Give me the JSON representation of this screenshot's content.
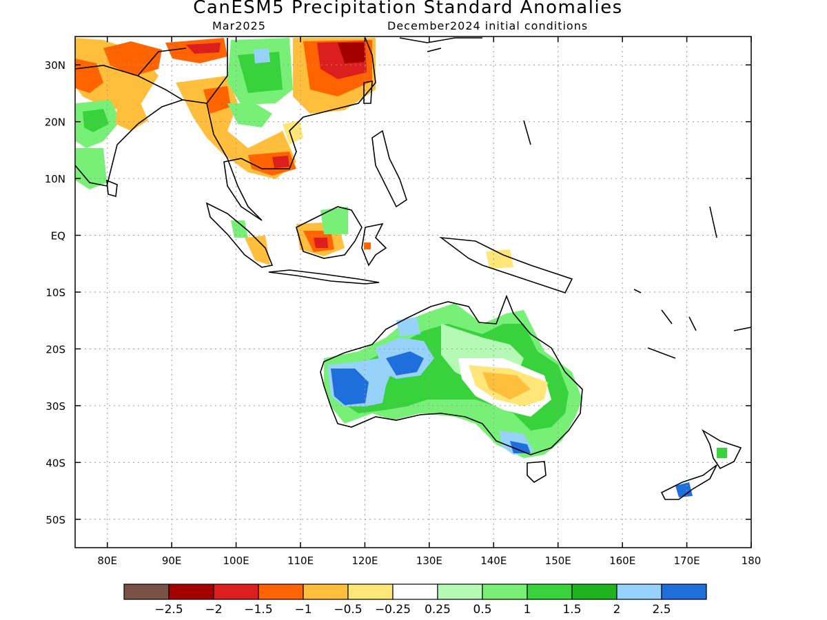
{
  "title": "CanESM5 Precipitation Standard Anomalies",
  "subtitle_left": "Mar2025",
  "subtitle_right": "December2024 initial conditions",
  "map": {
    "lon_range": [
      75,
      180
    ],
    "lat_range": [
      -55,
      35
    ],
    "lon_ticks": [
      "80E",
      "90E",
      "100E",
      "110E",
      "120E",
      "130E",
      "140E",
      "150E",
      "160E",
      "170E",
      "180"
    ],
    "lat_ticks": [
      "30N",
      "20N",
      "10N",
      "EQ",
      "10S",
      "20S",
      "30S",
      "40S",
      "50S"
    ],
    "grid": "dotted"
  },
  "colorbar": {
    "colors": [
      "#7a5146",
      "#a50000",
      "#dc1e1e",
      "#ff6400",
      "#ffbe3c",
      "#ffe678",
      "#ffffff",
      "#b4fab4",
      "#78f078",
      "#37d23c",
      "#1eb41e",
      "#96d2fa",
      "#1e6edc"
    ],
    "labels": [
      "−2.5",
      "−2",
      "−1.5",
      "−1",
      "−0.5",
      "−0.25",
      "0.25",
      "0.5",
      "1",
      "1.5",
      "2",
      "2.5"
    ]
  }
}
